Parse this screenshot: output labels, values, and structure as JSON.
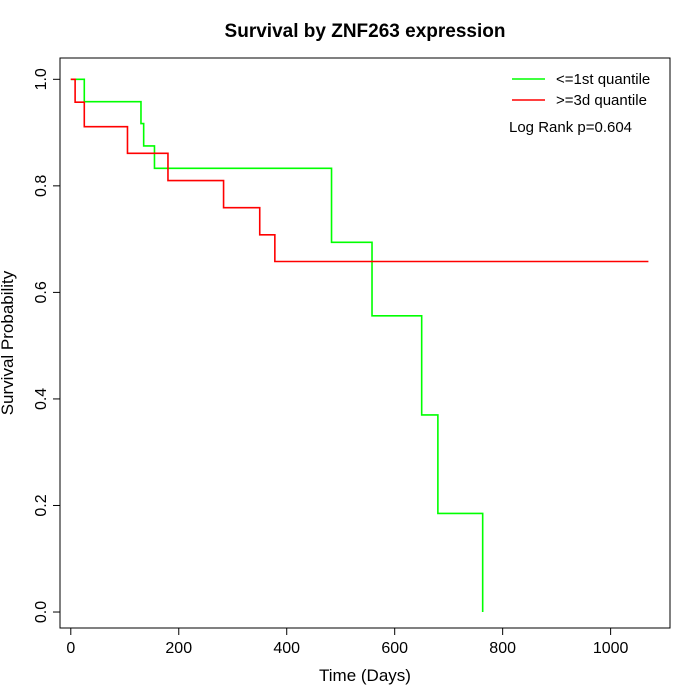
{
  "chart_data": {
    "type": "line",
    "title": "Survival by ZNF263 expression",
    "xlabel": "Time (Days)",
    "ylabel": "Survival Probability",
    "xlim": [
      -20,
      1110
    ],
    "ylim": [
      -0.03,
      1.04
    ],
    "x_ticks": [
      0,
      200,
      400,
      600,
      800,
      1000
    ],
    "y_ticks": [
      0.0,
      0.2,
      0.4,
      0.6,
      0.8,
      1.0
    ],
    "x_tick_labels": [
      "0",
      "200",
      "400",
      "600",
      "800",
      "1000"
    ],
    "y_tick_labels": [
      "0.0",
      "0.2",
      "0.4",
      "0.6",
      "0.8",
      "1.0"
    ],
    "grid": false,
    "legend_position": "top-right",
    "annotation": "Log Rank p=0.604",
    "series": [
      {
        "name": "<=1st quantile",
        "color": "#00ff00",
        "steps": [
          [
            0,
            1.0
          ],
          [
            25,
            0.958
          ],
          [
            130,
            0.917
          ],
          [
            135,
            0.875
          ],
          [
            155,
            0.833
          ],
          [
            483,
            0.694
          ],
          [
            558,
            0.556
          ],
          [
            650,
            0.37
          ],
          [
            680,
            0.185
          ],
          [
            763,
            0.0
          ]
        ],
        "end_x": 763
      },
      {
        "name": ">=3d quantile",
        "color": "#ff0000",
        "steps": [
          [
            0,
            1.0
          ],
          [
            8,
            0.957
          ],
          [
            25,
            0.911
          ],
          [
            105,
            0.861
          ],
          [
            180,
            0.81
          ],
          [
            283,
            0.759
          ],
          [
            350,
            0.708
          ],
          [
            378,
            0.658
          ]
        ],
        "end_x": 1070
      }
    ]
  }
}
